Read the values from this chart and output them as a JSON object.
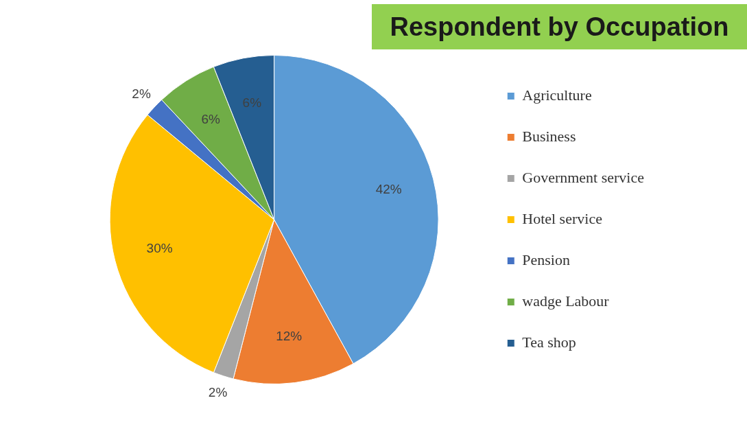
{
  "chart_data": {
    "type": "pie",
    "title": "Respondent by Occupation",
    "categories": [
      "Agriculture",
      "Business",
      "Government service",
      "Hotel service",
      "Pension",
      "wadge Labour",
      "Tea shop"
    ],
    "values": [
      42,
      12,
      2,
      30,
      2,
      6,
      6
    ],
    "colors": [
      "#5b9bd5",
      "#ed7d31",
      "#a5a5a5",
      "#ffc000",
      "#4472c4",
      "#70ad47",
      "#255e91"
    ],
    "value_labels": [
      "42%",
      "12%",
      "2%",
      "30%",
      "2%",
      "6%",
      "6%"
    ],
    "legend": "right"
  }
}
